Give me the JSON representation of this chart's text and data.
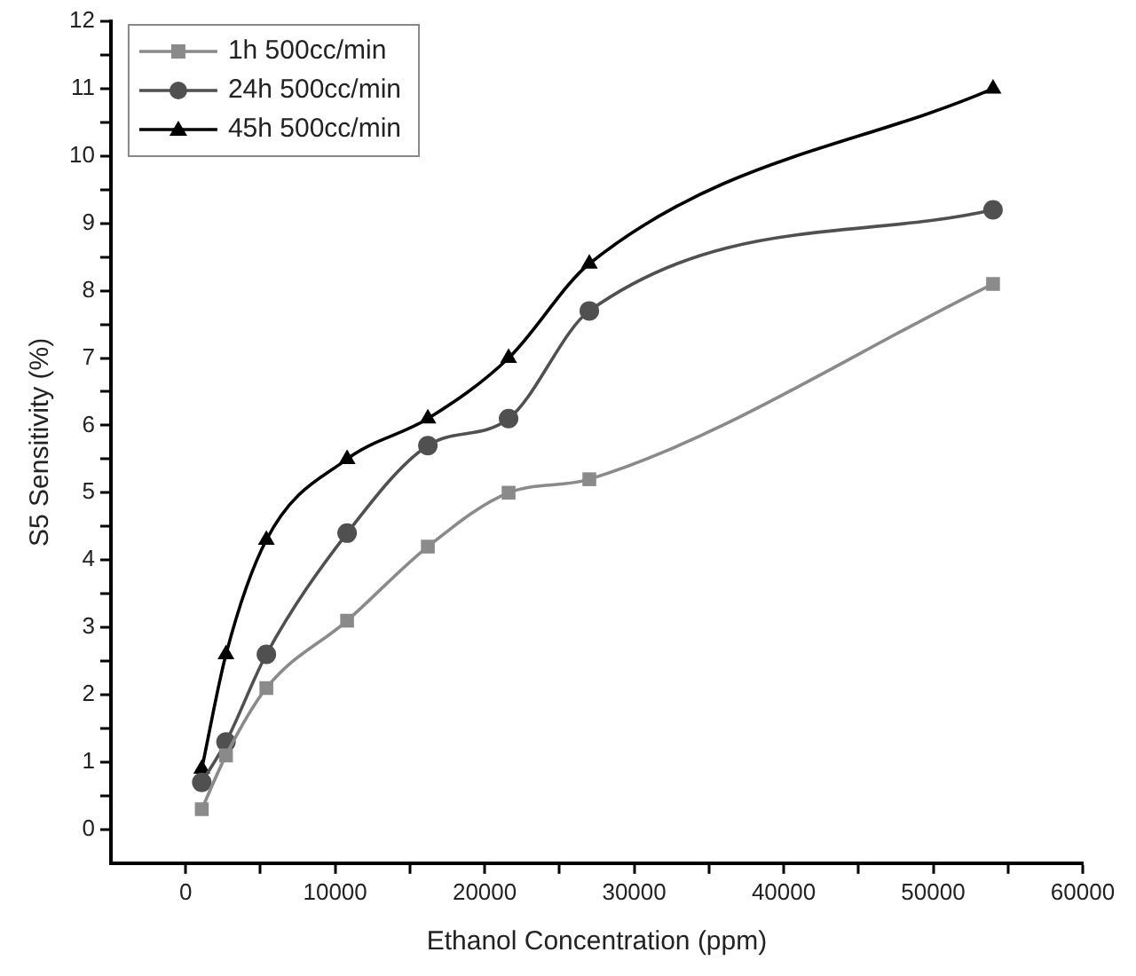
{
  "chart_data": {
    "type": "line",
    "xlabel": "Ethanol Concentration (ppm)",
    "ylabel": "S5 Sensitivity (%)",
    "x": [
      1080,
      2700,
      5400,
      10800,
      16200,
      21600,
      27000,
      54000
    ],
    "series": [
      {
        "name": "1h 500cc/min",
        "color": "#8a8a8a",
        "marker": "square",
        "values": [
          0.3,
          1.1,
          2.1,
          3.1,
          4.2,
          5.0,
          5.2,
          8.1
        ]
      },
      {
        "name": "24h 500cc/min",
        "color": "#505050",
        "marker": "circle",
        "values": [
          0.7,
          1.3,
          2.6,
          4.4,
          5.7,
          6.1,
          7.7,
          9.2
        ]
      },
      {
        "name": "45h 500cc/min",
        "color": "#000000",
        "marker": "triangle",
        "values": [
          0.9,
          2.6,
          4.3,
          5.5,
          6.1,
          7.0,
          8.4,
          11.0
        ]
      }
    ],
    "xlim": [
      -5000,
      60000
    ],
    "xticks": [
      0,
      {
        "value": 5000,
        "label": null
      },
      10000,
      {
        "value": 15000,
        "label": null
      },
      20000,
      {
        "value": 25000,
        "label": null
      },
      30000,
      {
        "value": 35000,
        "label": null
      },
      40000,
      {
        "value": 45000,
        "label": null
      },
      50000,
      {
        "value": 55000,
        "label": null
      },
      60000
    ],
    "ylim": [
      -0.5,
      12
    ],
    "yticks": [
      0,
      {
        "value": 0.5,
        "label": null
      },
      1,
      {
        "value": 1.5,
        "label": null
      },
      2,
      {
        "value": 2.5,
        "label": null
      },
      3,
      {
        "value": 3.5,
        "label": null
      },
      4,
      {
        "value": 4.5,
        "label": null
      },
      5,
      {
        "value": 5.5,
        "label": null
      },
      6,
      {
        "value": 6.5,
        "label": null
      },
      7,
      {
        "value": 7.5,
        "label": null
      },
      8,
      {
        "value": 8.5,
        "label": null
      },
      9,
      {
        "value": 9.5,
        "label": null
      },
      10,
      {
        "value": 10.5,
        "label": null
      },
      11,
      {
        "value": 11.5,
        "label": null
      },
      12
    ],
    "grid": false,
    "legend": "top left",
    "line_style": "solid"
  }
}
